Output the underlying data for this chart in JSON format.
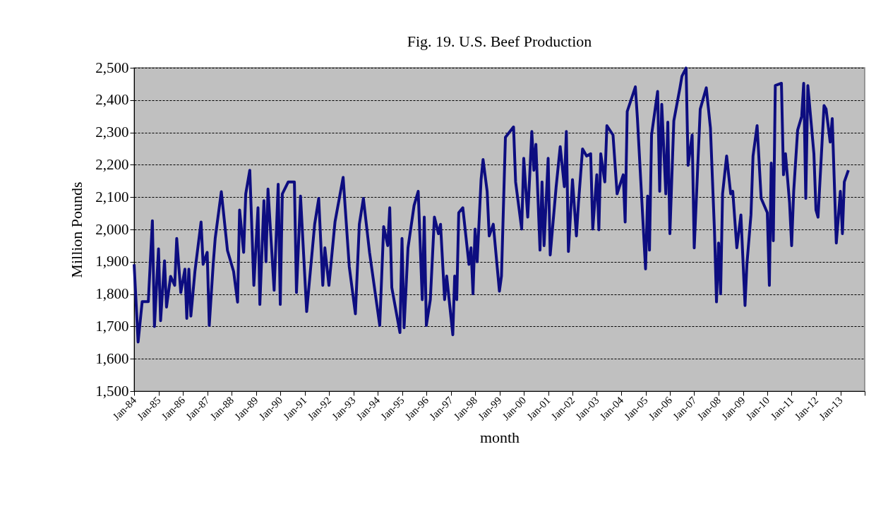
{
  "chart_data": {
    "type": "line",
    "title": "Fig. 19. U.S. Beef Production",
    "xlabel": "month",
    "ylabel": "Million Pounds",
    "x": [
      "1984-01",
      "1984-03",
      "1984-05",
      "1984-08",
      "1984-10",
      "1984-11",
      "1985-01",
      "1985-02",
      "1985-04",
      "1985-05",
      "1985-07",
      "1985-09",
      "1985-10",
      "1985-12",
      "1986-02",
      "1986-03",
      "1986-04",
      "1986-05",
      "1986-07",
      "1986-10",
      "1986-11",
      "1987-01",
      "1987-02",
      "1987-04",
      "1987-05",
      "1987-08",
      "1987-11",
      "1988-02",
      "1988-04",
      "1988-05",
      "1988-07",
      "1988-08",
      "1988-10",
      "1988-12",
      "1989-02",
      "1989-03",
      "1989-05",
      "1989-06",
      "1989-07",
      "1989-10",
      "1989-12",
      "1990-01",
      "1990-02",
      "1990-05",
      "1990-08",
      "1990-09",
      "1990-11",
      "1991-02",
      "1991-06",
      "1991-08",
      "1991-10",
      "1991-11",
      "1992-01",
      "1992-04",
      "1992-08",
      "1992-11",
      "1993-02",
      "1993-04",
      "1993-06",
      "1993-09",
      "1994-02",
      "1994-04",
      "1994-06",
      "1994-07",
      "1994-08",
      "1994-12",
      "1995-01",
      "1995-02",
      "1995-04",
      "1995-07",
      "1995-09",
      "1995-11",
      "1995-12",
      "1996-01",
      "1996-03",
      "1996-05",
      "1996-07",
      "1996-08",
      "1996-10",
      "1996-11",
      "1997-02",
      "1997-03",
      "1997-04",
      "1997-05",
      "1997-07",
      "1997-10",
      "1997-11",
      "1997-12",
      "1998-01",
      "1998-02",
      "1998-04",
      "1998-05",
      "1998-07",
      "1998-08",
      "1998-10",
      "1999-01",
      "1999-02",
      "1999-04",
      "1999-08",
      "1999-09",
      "1999-12",
      "2000-01",
      "2000-03",
      "2000-05",
      "2000-06",
      "2000-07",
      "2000-09",
      "2000-10",
      "2000-11",
      "2001-01",
      "2001-02",
      "2001-05",
      "2001-07",
      "2001-09",
      "2001-10",
      "2001-11",
      "2002-01",
      "2002-03",
      "2002-04",
      "2002-06",
      "2002-08",
      "2002-10",
      "2002-11",
      "2003-01",
      "2003-02",
      "2003-03",
      "2003-05",
      "2003-06",
      "2003-09",
      "2003-11",
      "2004-02",
      "2004-03",
      "2004-04",
      "2004-08",
      "2004-09",
      "2004-12",
      "2005-01",
      "2005-02",
      "2005-03",
      "2005-04",
      "2005-07",
      "2005-08",
      "2005-09",
      "2005-11",
      "2005-12",
      "2006-01",
      "2006-03",
      "2006-06",
      "2006-07",
      "2006-09",
      "2006-10",
      "2006-12",
      "2007-01",
      "2007-04",
      "2007-07",
      "2007-09",
      "2007-11",
      "2007-12",
      "2008-01",
      "2008-02",
      "2008-03",
      "2008-05",
      "2008-07",
      "2008-08",
      "2008-10",
      "2008-12",
      "2009-02",
      "2009-03",
      "2009-05",
      "2009-06",
      "2009-08",
      "2009-10",
      "2010-01",
      "2010-02",
      "2010-03",
      "2010-04",
      "2010-05",
      "2010-08",
      "2010-09",
      "2010-10",
      "2010-12",
      "2011-01",
      "2011-02",
      "2011-04",
      "2011-06",
      "2011-07",
      "2011-08",
      "2011-09",
      "2011-12",
      "2012-01",
      "2012-02",
      "2012-05",
      "2012-06",
      "2012-08",
      "2012-09",
      "2012-11",
      "2013-01",
      "2013-02",
      "2013-03",
      "2013-05"
    ],
    "series": [
      {
        "color": "#0d0d80",
        "values": [
          1892,
          1652,
          1777,
          1777,
          2027,
          1700,
          1940,
          1718,
          1903,
          1760,
          1855,
          1827,
          1972,
          1805,
          1877,
          1725,
          1877,
          1732,
          1870,
          2023,
          1892,
          1929,
          1703,
          1892,
          1972,
          2117,
          1935,
          1870,
          1775,
          2060,
          1929,
          2110,
          2183,
          1827,
          2067,
          1768,
          2089,
          1900,
          2125,
          1812,
          2140,
          1768,
          2110,
          2147,
          2147,
          1805,
          2103,
          1746,
          2016,
          2096,
          1827,
          1943,
          1827,
          2023,
          2161,
          1885,
          1739,
          2016,
          2096,
          1929,
          1703,
          2009,
          1950,
          2067,
          1820,
          1681,
          1972,
          1696,
          1943,
          2074,
          2118,
          1783,
          2038,
          1703,
          1783,
          2038,
          1987,
          2016,
          1783,
          1856,
          1674,
          1856,
          1783,
          2052,
          2067,
          1892,
          1943,
          1801,
          2001,
          1900,
          2154,
          2216,
          2118,
          1980,
          2016,
          1809,
          1856,
          2285,
          2317,
          2147,
          2001,
          2220,
          2038,
          2303,
          2183,
          2263,
          1936,
          2147,
          1950,
          2220,
          1921,
          2132,
          2256,
          2132,
          2303,
          1932,
          2154,
          1980,
          2082,
          2249,
          2227,
          2234,
          2001,
          2169,
          1999,
          2234,
          2147,
          2321,
          2292,
          2110,
          2169,
          2023,
          2365,
          2441,
          2343,
          1994,
          1878,
          2103,
          1936,
          2292,
          2427,
          2118,
          2387,
          2110,
          2332,
          1987,
          2336,
          2438,
          2474,
          2499,
          2198,
          2292,
          1943,
          2372,
          2438,
          2314,
          1994,
          1776,
          1958,
          1801,
          2110,
          2227,
          2110,
          2118,
          1943,
          2045,
          1765,
          1892,
          2045,
          2227,
          2321,
          2096,
          2052,
          1827,
          2205,
          1965,
          2445,
          2452,
          2169,
          2234,
          2082,
          1950,
          2118,
          2307,
          2350,
          2452,
          2096,
          2445,
          2234,
          2060,
          2038,
          2383,
          2372,
          2270,
          2343,
          1958,
          2118,
          1987,
          2147,
          2183
        ]
      }
    ],
    "xlim": [
      "1984-01",
      "2014-01"
    ],
    "xticks": [
      {
        "value": "1984-01",
        "label": "Jan-84"
      },
      {
        "value": "1985-01",
        "label": "Jan-85"
      },
      {
        "value": "1986-01",
        "label": "Jan-86"
      },
      {
        "value": "1987-01",
        "label": "Jan-87"
      },
      {
        "value": "1988-01",
        "label": "Jan-88"
      },
      {
        "value": "1989-01",
        "label": "Jan-89"
      },
      {
        "value": "1990-01",
        "label": "Jan-90"
      },
      {
        "value": "1991-01",
        "label": "Jan-91"
      },
      {
        "value": "1992-01",
        "label": "Jan-92"
      },
      {
        "value": "1993-01",
        "label": "Jan-93"
      },
      {
        "value": "1994-01",
        "label": "Jan-94"
      },
      {
        "value": "1995-01",
        "label": "Jan-95"
      },
      {
        "value": "1996-01",
        "label": "Jan-96"
      },
      {
        "value": "1997-01",
        "label": "Jan-97"
      },
      {
        "value": "1998-01",
        "label": "Jan-98"
      },
      {
        "value": "1999-01",
        "label": "Jan-99"
      },
      {
        "value": "2000-01",
        "label": "Jan-00"
      },
      {
        "value": "2001-01",
        "label": "Jan-01"
      },
      {
        "value": "2002-01",
        "label": "Jan-02"
      },
      {
        "value": "2003-01",
        "label": "Jan-03"
      },
      {
        "value": "2004-01",
        "label": "Jan-04"
      },
      {
        "value": "2005-01",
        "label": "Jan-05"
      },
      {
        "value": "2006-01",
        "label": "Jan-06"
      },
      {
        "value": "2007-01",
        "label": "Jan-07"
      },
      {
        "value": "2008-01",
        "label": "Jan-08"
      },
      {
        "value": "2009-01",
        "label": "Jan-09"
      },
      {
        "value": "2010-01",
        "label": "Jan-10"
      },
      {
        "value": "2011-01",
        "label": "Jan-11"
      },
      {
        "value": "2012-01",
        "label": "Jan-12"
      },
      {
        "value": "2013-01",
        "label": "Jan-13"
      },
      {
        "value": "2014-01",
        "label": null
      }
    ],
    "ylim": [
      1500,
      2500
    ],
    "yticks": [
      {
        "value": 1500,
        "label": "1,500"
      },
      {
        "value": 1600,
        "label": "1,600"
      },
      {
        "value": 1700,
        "label": "1,700"
      },
      {
        "value": 1800,
        "label": "1,800"
      },
      {
        "value": 1900,
        "label": "1,900"
      },
      {
        "value": 2000,
        "label": "2,000"
      },
      {
        "value": 2100,
        "label": "2,100"
      },
      {
        "value": 2200,
        "label": "2,200"
      },
      {
        "value": 2300,
        "label": "2,300"
      },
      {
        "value": 2400,
        "label": "2,400"
      },
      {
        "value": 2500,
        "label": "2,500"
      }
    ],
    "grid": "y",
    "legend": false,
    "line_style": "solid",
    "marker": "none"
  }
}
